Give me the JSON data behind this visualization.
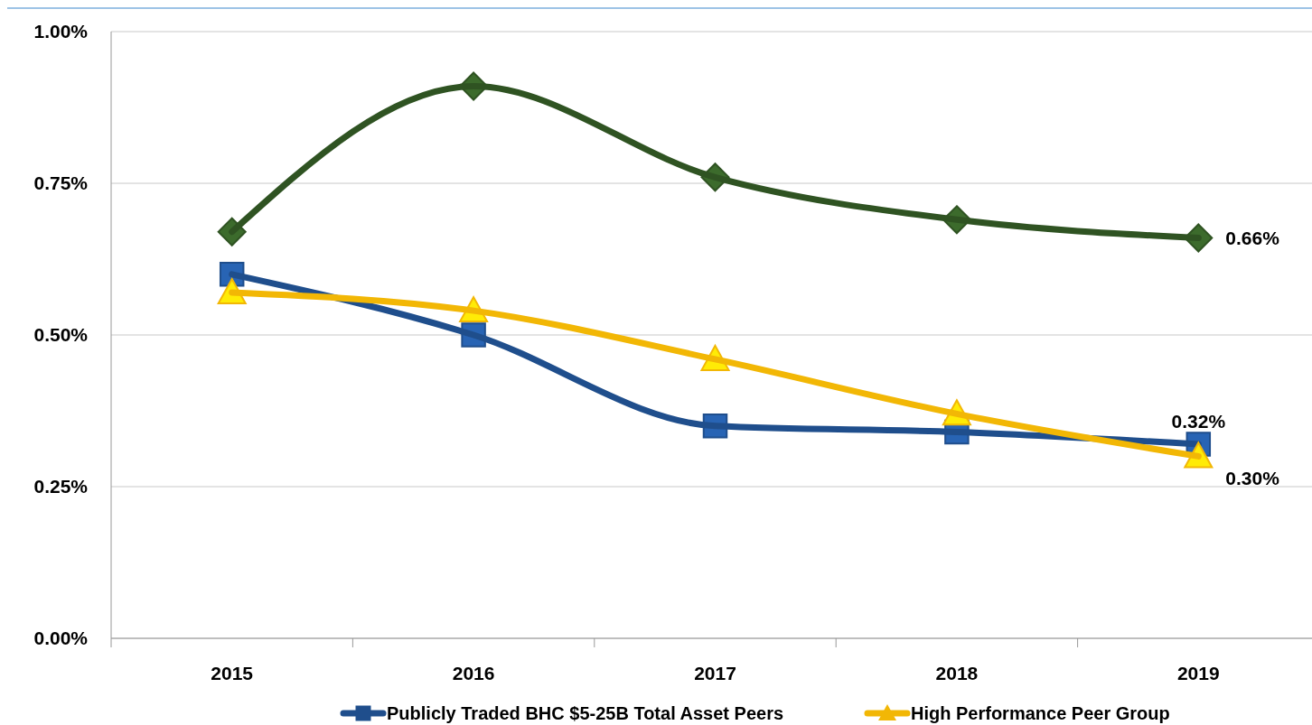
{
  "chart_data": {
    "type": "line",
    "categories": [
      "2015",
      "2016",
      "2017",
      "2018",
      "2019"
    ],
    "series": [
      {
        "color": "#2f5322",
        "marker": "diamond",
        "values": [
          0.67,
          0.91,
          0.76,
          0.69,
          0.66
        ],
        "value_labels": [
          null,
          null,
          null,
          null,
          "0.66%"
        ]
      },
      {
        "name": "Publicly Traded BHC $5-25B Total Asset Peers",
        "color": "#1f4e8c",
        "marker": "square",
        "values": [
          0.6,
          0.5,
          0.35,
          0.34,
          0.32
        ],
        "value_labels": [
          null,
          null,
          null,
          null,
          "0.32%"
        ]
      },
      {
        "name": "High Performance Peer Group",
        "color": "#f2b705",
        "marker": "triangle",
        "values": [
          0.57,
          0.54,
          0.46,
          0.37,
          0.3
        ],
        "value_labels": [
          null,
          null,
          null,
          null,
          "0.30%"
        ]
      }
    ],
    "ylim": [
      0,
      1
    ],
    "yticks": [
      {
        "value": 0,
        "label": "0.00%"
      },
      {
        "value": 0.25,
        "label": "0.25%"
      },
      {
        "value": 0.5,
        "label": "0.50%"
      },
      {
        "value": 0.75,
        "label": "0.75%"
      },
      {
        "value": 1,
        "label": "1.00%"
      }
    ],
    "grid": "y",
    "legend": "bottom"
  }
}
